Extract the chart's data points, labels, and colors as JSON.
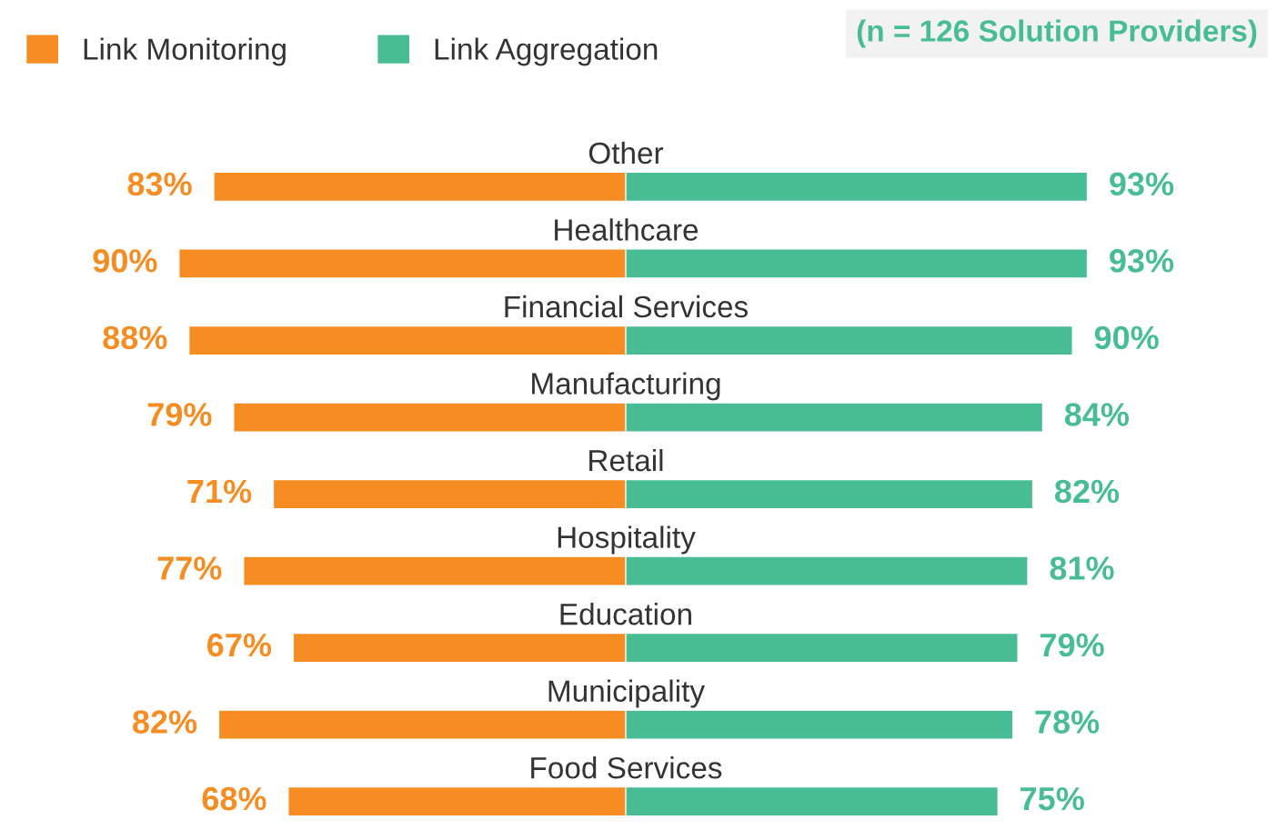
{
  "chart_data": [
    {
      "type": "bar",
      "orientation": "horizontal",
      "legend": "top left",
      "categories": [
        "Other",
        "Healthcare",
        "Financial Services",
        "Manufacturing",
        "Retail",
        "Hospitality",
        "Education",
        "Municipality",
        "Food Services"
      ],
      "series": [
        {
          "name": "Link Monitoring",
          "color": "#f68d22",
          "values": [
            83,
            90,
            88,
            79,
            71,
            77,
            67,
            82,
            68
          ],
          "value_labels": [
            "83%",
            "90%",
            "88%",
            "79%",
            "71%",
            "77%",
            "67%",
            "82%",
            "68%"
          ]
        }
      ]
    },
    {
      "type": "bar",
      "orientation": "horizontal",
      "categories": [
        null,
        null,
        null,
        null,
        null,
        null,
        null,
        null,
        null
      ],
      "series": [
        {
          "name": "Link Aggregation",
          "color": "#48bd94",
          "values": [
            93,
            93,
            90,
            84,
            82,
            81,
            79,
            78,
            75
          ],
          "value_labels": [
            "93%",
            "93%",
            "90%",
            "84%",
            "82%",
            "81%",
            "79%",
            "78%",
            "75%"
          ]
        }
      ],
      "annotations": [
        "(n = 126 Solution Providers)"
      ]
    }
  ]
}
